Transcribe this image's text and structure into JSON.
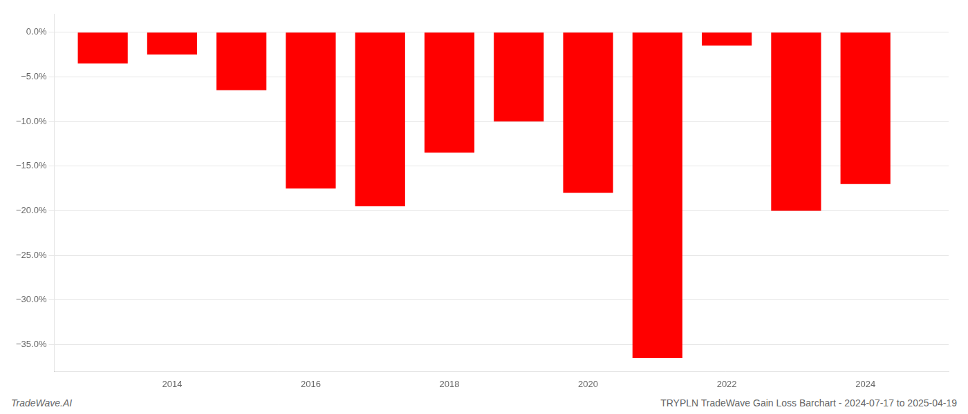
{
  "chart_data": {
    "type": "bar",
    "x": [
      2013,
      2014,
      2015,
      2016,
      2017,
      2018,
      2019,
      2020,
      2021,
      2022,
      2023,
      2024
    ],
    "values": [
      -3.5,
      -2.5,
      -6.5,
      -17.5,
      -19.5,
      -13.5,
      -10.0,
      -18.0,
      -36.5,
      -1.5,
      -20.0,
      -17.0
    ],
    "color": "#FF0000",
    "xlim": [
      2012.3,
      2025.2
    ],
    "xticks": [
      2014,
      2016,
      2018,
      2020,
      2022,
      2024
    ],
    "ylim": [
      -38,
      2
    ],
    "yticks": [
      {
        "value": 0.0,
        "label": "0.0%"
      },
      {
        "value": -5.0,
        "label": "−5.0%"
      },
      {
        "value": -10.0,
        "label": "−10.0%"
      },
      {
        "value": -15.0,
        "label": "−15.0%"
      },
      {
        "value": -20.0,
        "label": "−20.0%"
      },
      {
        "value": -25.0,
        "label": "−25.0%"
      },
      {
        "value": -30.0,
        "label": "−30.0%"
      },
      {
        "value": -35.0,
        "label": "−35.0%"
      }
    ],
    "grid": "y",
    "annotations": [
      "TradeWave.AI",
      "TRYPLN TradeWave Gain Loss Barchart - 2024-07-17 to 2025-04-19"
    ]
  }
}
